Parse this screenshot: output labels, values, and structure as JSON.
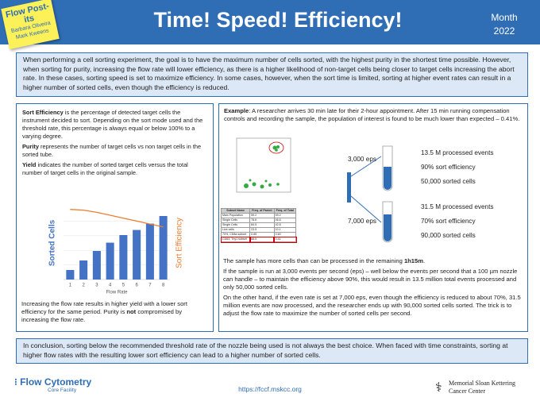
{
  "header": {
    "badge": {
      "title": "Flow Post-its",
      "authors": [
        "Barbara Oliveira",
        "Mark Kweens"
      ]
    },
    "title": "Time! Speed! Efficiency!",
    "date": [
      "Month",
      "2022"
    ]
  },
  "intro": "When performing a cell sorting experiment, the goal is to have the maximum number of cells sorted, with the highest purity in the shortest time possible. However, when sorting for purity, increasing the flow rate will lower efficiency, as there is a higher likelihood of non-target cells being closer to target cells increasing the abort rate. In these cases, sorting speed is set to maximize efficiency. In some cases, however, when the sort time is limited, sorting at higher event rates can result in a higher number of sorted cells, even though the efficiency is reduced.",
  "left": {
    "definitions": [
      {
        "term": "Sort Efficiency",
        "text": " is the percentage of detected target cells the instrument decided to sort. Depending on the sort mode used and the threshold rate, this percentage is always equal or below 100% to a varying degree."
      },
      {
        "term": "Purity",
        "text": " represents the number of target cells vs non target cells in the sorted tube."
      },
      {
        "term": "Yield",
        "text": " indicates the number of sorted target cells versus the total number of target cells in the original sample."
      }
    ],
    "chart": {
      "type": "bar-line",
      "x_label": "Flow Rate",
      "categories": [
        "1",
        "2",
        "3",
        "4",
        "5",
        "6",
        "7",
        "8"
      ],
      "series": [
        {
          "name": "Sorted Cells",
          "color": "#4472c4",
          "values": [
            15,
            30,
            45,
            58,
            70,
            78,
            88,
            100
          ]
        },
        {
          "name": "Sort Efficiency",
          "color": "#ed7d31",
          "axis": "y2",
          "values": [
            96,
            95,
            92,
            88,
            84,
            80,
            76,
            72
          ]
        }
      ],
      "ylim": [
        0,
        115
      ],
      "y2lim": [
        0,
        100
      ]
    },
    "summary": {
      "before": "Increasing the flow rate results in higher yield with a lower sort efficiency for the same period. Purity is ",
      "bold": "not",
      "after": " compromised by increasing the flow rate."
    }
  },
  "right": {
    "example": {
      "term": "Example",
      "text": ": A researcher arrives 30 min late for their 2-hour appointment. After 15 min running compensation controls and recording the sample, the population of interest is found to be much lower than expected – 0.41%."
    },
    "table": {
      "headers": [
        "Subset Name",
        "Freq. of Parent",
        "Freq. of Total"
      ],
      "rows": [
        [
          "Main Population",
          "59.2",
          "59.2"
        ],
        [
          "Single Cells",
          "78.6",
          "46.6"
        ],
        [
          "Single Cells",
          "84.5",
          "42.8"
        ],
        [
          "Live cells",
          "23.5",
          "10.1"
        ],
        [
          "70%, CD8a subset",
          "0.85",
          "0.60"
        ],
        [
          "CD63, Thy1 subset",
          "68.5",
          "0.41"
        ]
      ]
    },
    "scenarios": [
      {
        "rate": "3,000 eps",
        "results": [
          "13.5 M processed events",
          "90% sort efficiency",
          "50,000 sorted cells"
        ]
      },
      {
        "rate": "7,000 eps",
        "results": [
          "31.5 M processed events",
          "70% sort efficiency",
          "90,000 sorted cells"
        ]
      }
    ],
    "paragraphs": [
      {
        "text": "The sample has more cells than can be processed in the remaining ",
        "bold": "1h15m",
        "after": "."
      },
      {
        "text": "If the sample is run at 3,000 events per second (eps) – well below the events per second that a 100 µm nozzle can handle – to maintain the efficiency above 90%, this would result in 13.5 million total events processed and only 50,000 sorted cells.",
        "bold": "",
        "after": ""
      },
      {
        "text": "On the other hand, if the even rate is set at 7,000 eps, even though the efficiency is reduced to about 70%, 31.5 million events are now processed, and the researcher ends up with 90,000 sorted cells sorted. The trick is to adjust the flow rate to maximize the number of sorted cells per second.",
        "bold": "",
        "after": ""
      }
    ]
  },
  "conclusion": "In conclusion, sorting below the recommended threshold rate of the nozzle being used is not always the best choice. When faced with time constraints, sorting at higher flow rates with the resulting lower sort efficiency can lead to a higher number of sorted cells.",
  "footer": {
    "logo": [
      "Flow Cytometry",
      "Core Facility"
    ],
    "url": "https://fccf.mskcc.org",
    "institution": [
      "Memorial Sloan Kettering",
      "Cancer Center"
    ]
  }
}
